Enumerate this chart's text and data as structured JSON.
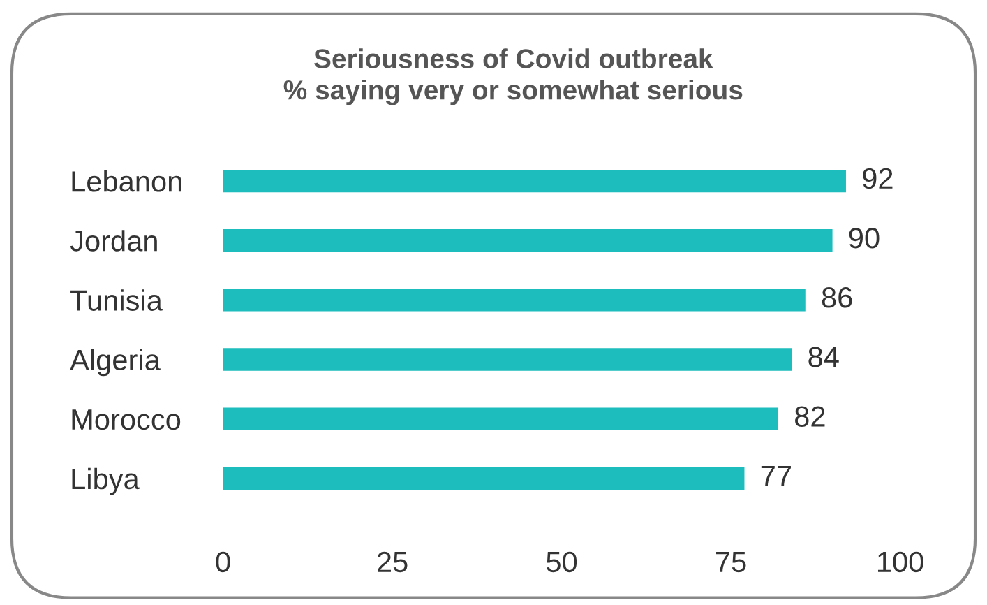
{
  "chart_data": {
    "type": "bar",
    "orientation": "horizontal",
    "title": "Seriousness of Covid outbreak\n% saying very or somewhat serious",
    "categories": [
      "Lebanon",
      "Jordan",
      "Tunisia",
      "Algeria",
      "Morocco",
      "Libya"
    ],
    "values": [
      92,
      90,
      86,
      84,
      82,
      77
    ],
    "color": "#1dbcbd",
    "xlim": [
      0,
      100
    ],
    "xticks": [
      0,
      25,
      50,
      75,
      100
    ],
    "data_labels": true,
    "grid": false,
    "legend": false
  }
}
